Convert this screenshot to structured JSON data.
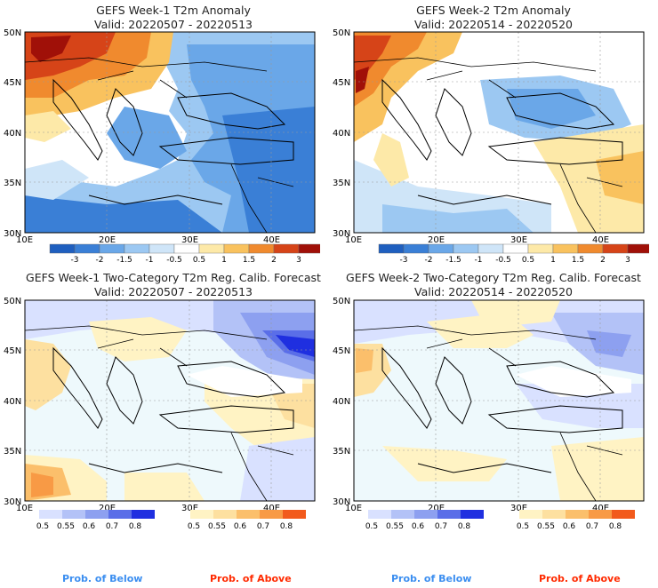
{
  "panels": [
    {
      "title_line1": "GEFS Week-1 T2m Anomaly",
      "title_line2": "Valid: 20220507 - 20220513"
    },
    {
      "title_line1": "GEFS Week-2 T2m Anomaly",
      "title_line2": "Valid: 20220514 - 20220520"
    },
    {
      "title_line1": "GEFS Week-1 Two-Category T2m Reg. Calib. Forecast",
      "title_line2": "Valid: 20220507 - 20220513"
    },
    {
      "title_line1": "GEFS Week-2 Two-Category T2m Reg. Calib. Forecast",
      "title_line2": "Valid: 20220514 - 20220520"
    }
  ],
  "axes": {
    "lat_labels": [
      "50N",
      "45N",
      "40N",
      "35N",
      "30N"
    ],
    "lon_labels": [
      "10E",
      "20E",
      "30E",
      "40E"
    ]
  },
  "anomaly_colorbar": {
    "labels": [
      "-3",
      "-2",
      "-1.5",
      "-1",
      "-0.5",
      "0.5",
      "1",
      "1.5",
      "2",
      "3"
    ],
    "colors": [
      "#1f5fbf",
      "#3a7fd6",
      "#6aa7e8",
      "#9cc8f2",
      "#cfe5f8",
      "#ffffff",
      "#fde9a8",
      "#f9c25e",
      "#f08a2e",
      "#d64418",
      "#a01008"
    ]
  },
  "prob_colorbar": {
    "labels": [
      "0.5",
      "0.55",
      "0.6",
      "0.7",
      "0.8"
    ],
    "below_colors": [
      "#d9e1ff",
      "#b3c2f7",
      "#8da0f0",
      "#5a6ee8",
      "#1f2fe0"
    ],
    "above_colors": [
      "#fff3c4",
      "#fde0a0",
      "#fbbf6b",
      "#f89a45",
      "#f25a1c"
    ]
  },
  "legend": {
    "below_text": "Prob. of Below",
    "above_text": "Prob. of Above",
    "below_color": "#3b8ef0",
    "above_color": "#ff2a00"
  }
}
